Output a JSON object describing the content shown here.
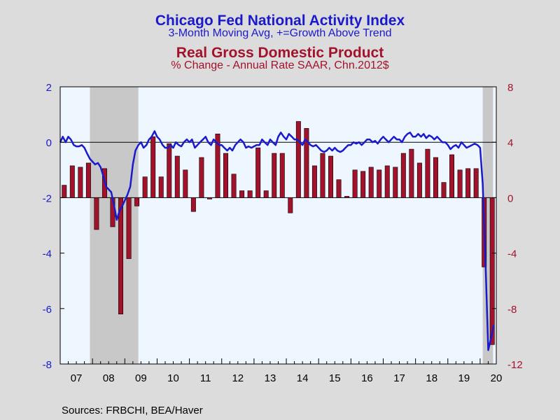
{
  "titles": {
    "line1": "Chicago Fed National Activity Index",
    "line2": "3-Month Moving Avg, +=Growth Above Trend",
    "line3": "Real Gross Domestic Product",
    "line4": "% Change - Annual Rate    SAAR, Chn.2012$"
  },
  "source": "Sources:  FRBCHI, BEA/Haver",
  "colors": {
    "line": "#1a1acc",
    "bar": "#a3122b",
    "recession": "#c8c8c8",
    "plot_bg": "#eef6ff",
    "left_axis": "#1a1acc",
    "right_axis": "#a3122b"
  },
  "chart_data": {
    "type": "bar+line",
    "x_range": [
      2007.0,
      2020.5
    ],
    "x_ticks": [
      "07",
      "08",
      "09",
      "10",
      "11",
      "12",
      "13",
      "14",
      "15",
      "16",
      "17",
      "18",
      "19",
      "20"
    ],
    "left_axis": {
      "ticks": [
        "2",
        "0",
        "-2",
        "-4",
        "-6",
        "-8"
      ],
      "range": [
        -8,
        2
      ]
    },
    "right_axis": {
      "ticks": [
        "8",
        "4",
        "0",
        "-4",
        "-8",
        "-12"
      ],
      "range": [
        -12,
        8
      ]
    },
    "recessions": [
      [
        2007.92,
        2009.42
      ],
      [
        2020.08,
        2020.4
      ]
    ],
    "series": [
      {
        "name": "Real Gross Domestic Product",
        "type": "bar",
        "axis": "right",
        "x": [
          "2007Q1",
          "2007Q2",
          "2007Q3",
          "2007Q4",
          "2008Q1",
          "2008Q2",
          "2008Q3",
          "2008Q4",
          "2009Q1",
          "2009Q2",
          "2009Q3",
          "2009Q4",
          "2010Q1",
          "2010Q2",
          "2010Q3",
          "2010Q4",
          "2011Q1",
          "2011Q2",
          "2011Q3",
          "2011Q4",
          "2012Q1",
          "2012Q2",
          "2012Q3",
          "2012Q4",
          "2013Q1",
          "2013Q2",
          "2013Q3",
          "2013Q4",
          "2014Q1",
          "2014Q2",
          "2014Q3",
          "2014Q4",
          "2015Q1",
          "2015Q2",
          "2015Q3",
          "2015Q4",
          "2016Q1",
          "2016Q2",
          "2016Q3",
          "2016Q4",
          "2017Q1",
          "2017Q2",
          "2017Q3",
          "2017Q4",
          "2018Q1",
          "2018Q2",
          "2018Q3",
          "2018Q4",
          "2019Q1",
          "2019Q2",
          "2019Q3",
          "2019Q4",
          "2020Q1",
          "2020Q2"
        ],
        "values": [
          0.9,
          2.3,
          2.2,
          2.5,
          -2.3,
          2.1,
          -2.1,
          -8.4,
          -4.4,
          -0.6,
          1.5,
          4.4,
          1.5,
          3.9,
          3.0,
          2.0,
          -1.0,
          2.9,
          -0.1,
          4.6,
          3.2,
          1.7,
          0.5,
          0.5,
          3.6,
          0.5,
          3.2,
          3.2,
          -1.1,
          5.5,
          5.0,
          2.3,
          3.2,
          3.0,
          1.3,
          0.1,
          2.0,
          1.9,
          2.2,
          2.0,
          2.3,
          2.2,
          3.2,
          3.5,
          2.5,
          3.5,
          2.9,
          1.1,
          3.1,
          2.0,
          2.1,
          2.1,
          -5.0,
          -10.6
        ]
      },
      {
        "name": "Chicago Fed National Activity Index",
        "type": "line",
        "axis": "left",
        "x": [
          2007.0,
          2007.08,
          2007.17,
          2007.25,
          2007.33,
          2007.42,
          2007.5,
          2007.58,
          2007.67,
          2007.75,
          2007.83,
          2007.92,
          2008.0,
          2008.08,
          2008.17,
          2008.25,
          2008.33,
          2008.42,
          2008.5,
          2008.58,
          2008.67,
          2008.75,
          2008.83,
          2008.92,
          2009.0,
          2009.08,
          2009.17,
          2009.25,
          2009.33,
          2009.42,
          2009.5,
          2009.58,
          2009.67,
          2009.75,
          2009.83,
          2009.92,
          2010.0,
          2010.08,
          2010.17,
          2010.25,
          2010.33,
          2010.42,
          2010.5,
          2010.58,
          2010.67,
          2010.75,
          2010.83,
          2010.92,
          2011.0,
          2011.08,
          2011.17,
          2011.25,
          2011.33,
          2011.42,
          2011.5,
          2011.58,
          2011.67,
          2011.75,
          2011.83,
          2011.92,
          2012.0,
          2012.08,
          2012.17,
          2012.25,
          2012.33,
          2012.42,
          2012.5,
          2012.58,
          2012.67,
          2012.75,
          2012.83,
          2012.92,
          2013.0,
          2013.08,
          2013.17,
          2013.25,
          2013.33,
          2013.42,
          2013.5,
          2013.58,
          2013.67,
          2013.75,
          2013.83,
          2013.92,
          2014.0,
          2014.08,
          2014.17,
          2014.25,
          2014.33,
          2014.42,
          2014.5,
          2014.58,
          2014.67,
          2014.75,
          2014.83,
          2014.92,
          2015.0,
          2015.08,
          2015.17,
          2015.25,
          2015.33,
          2015.42,
          2015.5,
          2015.58,
          2015.67,
          2015.75,
          2015.83,
          2015.92,
          2016.0,
          2016.08,
          2016.17,
          2016.25,
          2016.33,
          2016.42,
          2016.5,
          2016.58,
          2016.67,
          2016.75,
          2016.83,
          2016.92,
          2017.0,
          2017.08,
          2017.17,
          2017.25,
          2017.33,
          2017.42,
          2017.5,
          2017.58,
          2017.67,
          2017.75,
          2017.83,
          2017.92,
          2018.0,
          2018.08,
          2018.17,
          2018.25,
          2018.33,
          2018.42,
          2018.5,
          2018.58,
          2018.67,
          2018.75,
          2018.83,
          2018.92,
          2019.0,
          2019.08,
          2019.17,
          2019.25,
          2019.33,
          2019.42,
          2019.5,
          2019.58,
          2019.67,
          2019.75,
          2019.83,
          2019.92,
          2020.0,
          2020.08,
          2020.17,
          2020.25,
          2020.33,
          2020.42
        ],
        "values": [
          0.0,
          0.2,
          0.0,
          0.2,
          0.1,
          -0.1,
          -0.15,
          -0.15,
          -0.1,
          -0.2,
          -0.4,
          -0.6,
          -0.7,
          -0.8,
          -0.75,
          -0.9,
          -1.2,
          -1.6,
          -1.7,
          -1.8,
          -2.3,
          -2.8,
          -2.5,
          -2.3,
          -2.1,
          -1.9,
          -1.6,
          -0.8,
          -0.3,
          -0.1,
          0.0,
          -0.2,
          -0.1,
          0.1,
          0.2,
          0.4,
          0.2,
          0.1,
          -0.1,
          -0.2,
          -0.2,
          -0.1,
          -0.2,
          0.0,
          -0.1,
          -0.15,
          0.0,
          0.1,
          0.0,
          0.1,
          -0.2,
          -0.1,
          0.0,
          0.1,
          0.2,
          0.0,
          -0.1,
          0.1,
          0.0,
          -0.1,
          -0.1,
          -0.2,
          -0.3,
          -0.2,
          -0.3,
          -0.1,
          0.0,
          0.1,
          0.0,
          -0.2,
          -0.15,
          -0.2,
          -0.15,
          -0.1,
          -0.1,
          0.1,
          0.0,
          -0.1,
          0.1,
          0.0,
          -0.1,
          0.2,
          0.35,
          0.2,
          0.1,
          0.3,
          0.2,
          0.1,
          0.1,
          0.0,
          -0.1,
          0.1,
          0.0,
          -0.1,
          -0.15,
          -0.1,
          -0.2,
          -0.3,
          -0.35,
          -0.3,
          -0.2,
          -0.3,
          -0.2,
          -0.3,
          -0.35,
          -0.3,
          -0.2,
          -0.1,
          -0.1,
          0.0,
          -0.05,
          0.0,
          -0.1,
          0.0,
          0.1,
          0.1,
          0.0,
          0.05,
          -0.05,
          0.1,
          0.2,
          0.1,
          0.0,
          0.1,
          0.2,
          0.1,
          0.1,
          0.0,
          0.2,
          0.3,
          0.35,
          0.2,
          0.2,
          0.3,
          0.2,
          0.3,
          0.15,
          0.25,
          0.2,
          0.1,
          0.2,
          0.1,
          0.0,
          0.0,
          -0.1,
          -0.25,
          -0.15,
          -0.1,
          -0.2,
          0.0,
          -0.1,
          -0.2,
          -0.15,
          -0.1,
          -0.05,
          -0.1,
          -0.2,
          -1.5,
          -4.5,
          -7.5,
          -7.1,
          -6.6
        ]
      }
    ]
  }
}
